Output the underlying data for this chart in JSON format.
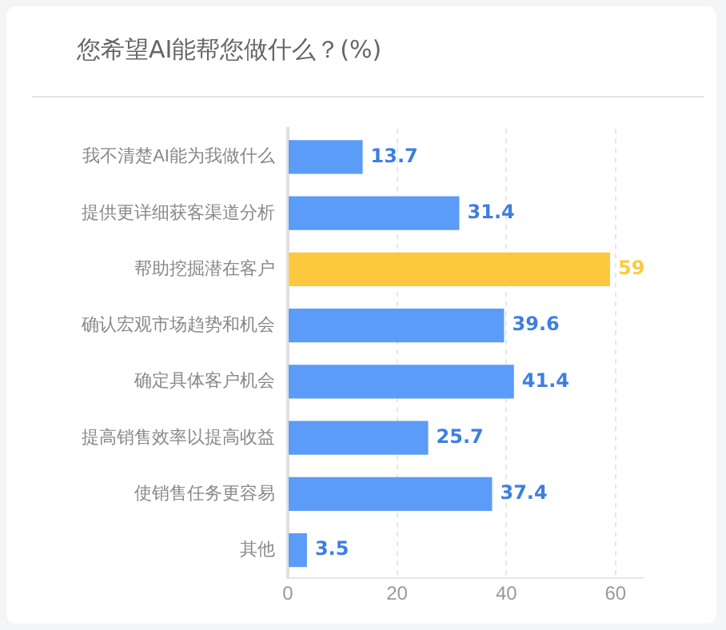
{
  "chart_data": {
    "type": "bar",
    "orientation": "horizontal",
    "title": "您希望AI能帮您做什么？(%)",
    "categories": [
      "我不清楚AI能为我做什么",
      "提供更详细获客渠道分析",
      "帮助挖掘潜在客户",
      "确认宏观市场趋势和机会",
      "确定具体客户机会",
      "提高销售效率以提高收益",
      "使销售任务更容易",
      "其他"
    ],
    "values": [
      13.7,
      31.4,
      59,
      39.6,
      41.4,
      25.7,
      37.4,
      3.5
    ],
    "colors": [
      "#5b9cf8",
      "#5b9cf8",
      "#fcc93e",
      "#5b9cf8",
      "#5b9cf8",
      "#5b9cf8",
      "#5b9cf8",
      "#5b9cf8"
    ],
    "xlim": [
      0,
      65
    ],
    "xticks": [
      0,
      20,
      40,
      60
    ],
    "grid": "x",
    "data_labels": true,
    "legend": false
  }
}
